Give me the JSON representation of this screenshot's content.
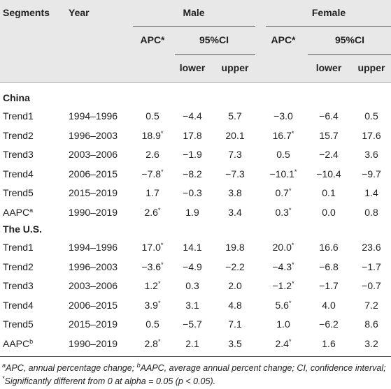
{
  "header": {
    "row1": [
      "Segments",
      "Year",
      "Male",
      "Female"
    ],
    "row2": [
      "APC*",
      "95%CI",
      "APC*",
      "95%CI"
    ],
    "row3": [
      "lower",
      "upper",
      "lower",
      "upper"
    ]
  },
  "sections": [
    {
      "title": "China",
      "rows": [
        {
          "cells": [
            "Trend1",
            "1994–1996",
            "0.5",
            "−4.4",
            "5.7",
            "−3.0",
            "−6.4",
            "0.5"
          ]
        },
        {
          "cells": [
            "Trend2",
            "1996–2003",
            "18.9*",
            "17.8",
            "20.1",
            "16.7*",
            "15.7",
            "17.6"
          ]
        },
        {
          "cells": [
            "Trend3",
            "2003–2006",
            "2.6",
            "−1.9",
            "7.3",
            "0.5",
            "−2.4",
            "3.6"
          ]
        },
        {
          "cells": [
            "Trend4",
            "2006–2015",
            "−7.8*",
            "−8.2",
            "−7.3",
            "−10.1*",
            "−10.4",
            "−9.7"
          ]
        },
        {
          "cells": [
            "Trend5",
            "2015–2019",
            "1.7",
            "−0.3",
            "3.8",
            "0.7*",
            "0.1",
            "1.4"
          ]
        },
        {
          "cells": [
            "AAPC",
            "1990–2019",
            "2.6*",
            "1.9",
            "3.4",
            "0.3*",
            "0.0",
            "0.8"
          ],
          "note": "a"
        }
      ]
    },
    {
      "title": "The U.S.",
      "rows": [
        {
          "cells": [
            "Trend1",
            "1994–1996",
            "17.0*",
            "14.1",
            "19.8",
            "20.0*",
            "16.6",
            "23.6"
          ]
        },
        {
          "cells": [
            "Trend2",
            "1996–2003",
            "−3.6*",
            "−4.9",
            "−2.2",
            "−4.3*",
            "−6.8",
            "−1.7"
          ]
        },
        {
          "cells": [
            "Trend3",
            "2003–2006",
            "1.2*",
            "0.3",
            "2.0",
            "−1.2*",
            "−1.7",
            "−0.7"
          ]
        },
        {
          "cells": [
            "Trend4",
            "2006–2015",
            "3.9*",
            "3.1",
            "4.8",
            "5.6*",
            "4.0",
            "7.2"
          ]
        },
        {
          "cells": [
            "Trend5",
            "2015–2019",
            "0.5",
            "−5.7",
            "7.1",
            "1.0",
            "−6.2",
            "8.6"
          ]
        },
        {
          "cells": [
            "AAPC",
            "1990–2019",
            "2.8*",
            "2.1",
            "3.5",
            "2.4*",
            "1.6",
            "3.2"
          ],
          "note": "b"
        }
      ]
    }
  ],
  "footnote": [
    {
      "sup": "a",
      "text": "APC, annual percentage change; "
    },
    {
      "sup": "b",
      "text": "AAPC, average annual percent change; CI, confidence interval; "
    },
    {
      "sup": "*",
      "text": "Significantly different from 0 at alpha = 0.05 (p < 0.05)."
    }
  ]
}
